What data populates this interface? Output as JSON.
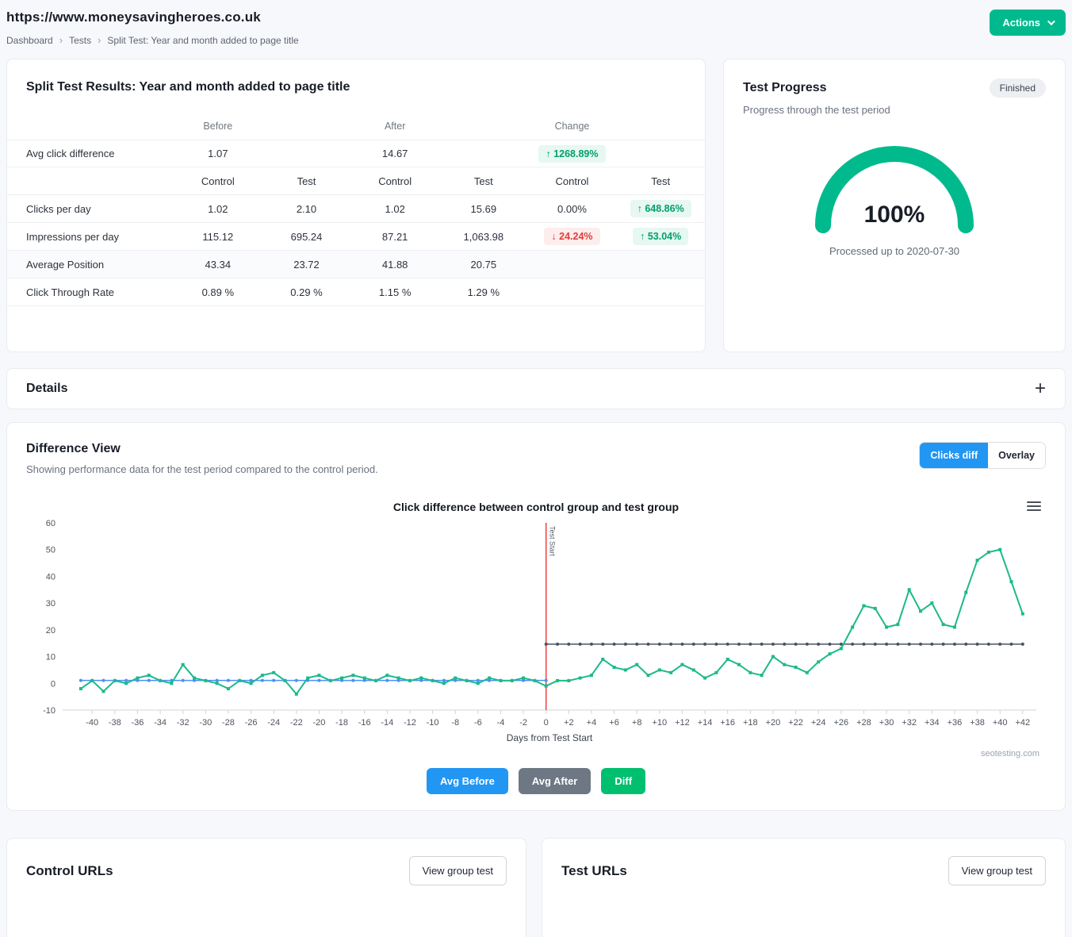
{
  "header": {
    "site_title": "https://www.moneysavingheroes.co.uk",
    "breadcrumb": [
      "Dashboard",
      "Tests",
      "Split Test: Year and month added to page title"
    ],
    "actions_label": "Actions"
  },
  "colors": {
    "brand_teal": "#00ba8d",
    "accent_blue": "#2196f3",
    "diff_green": "#1cb98b",
    "avg_after_gray": "#4a5560",
    "annotation_red": "#f03e3e",
    "up_badge_text": "#00a06a",
    "down_badge_text": "#e23c3c"
  },
  "results": {
    "title": "Split Test Results: Year and month added to page title",
    "periods": [
      "Before",
      "After",
      "Change"
    ],
    "avg_label": "Avg click difference",
    "avg_before": "1.07",
    "avg_after": "14.67",
    "avg_change": "↑ 1268.89%",
    "sub_headers": [
      "Control",
      "Test",
      "Control",
      "Test",
      "Control",
      "Test"
    ],
    "rows": [
      {
        "label": "Clicks per day",
        "c1": "1.02",
        "t1": "2.10",
        "c2": "1.02",
        "t2": "15.69",
        "c3": "0.00%",
        "t3": "↑ 648.86%"
      },
      {
        "label": "Impressions per day",
        "c1": "115.12",
        "t1": "695.24",
        "c2": "87.21",
        "t2": "1,063.98",
        "c3": "↓ 24.24%",
        "t3": "↑ 53.04%"
      },
      {
        "label": "Average Position",
        "c1": "43.34",
        "t1": "23.72",
        "c2": "41.88",
        "t2": "20.75",
        "c3": "",
        "t3": ""
      },
      {
        "label": "Click Through Rate",
        "c1": "0.89 %",
        "t1": "0.29 %",
        "c2": "1.15 %",
        "t2": "1.29 %",
        "c3": "",
        "t3": ""
      }
    ]
  },
  "progress": {
    "title": "Test Progress",
    "status": "Finished",
    "subtitle": "Progress through the test period",
    "percent": "100%",
    "caption": "Processed up to 2020-07-30"
  },
  "details": {
    "title": "Details"
  },
  "diff_view": {
    "title": "Difference View",
    "subtitle": "Showing performance data for the test period compared to the control period.",
    "toggles": [
      "Clicks diff",
      "Overlay"
    ],
    "legend": [
      "Avg Before",
      "Avg After",
      "Diff"
    ],
    "watermark": "seotesting.com"
  },
  "chart_data": {
    "type": "line",
    "title": "Click difference between control group and test group",
    "xlabel": "Days from Test Start",
    "ylim": [
      -10,
      60
    ],
    "yticks_step": 10,
    "xticks": {
      "from": -40,
      "to": 42,
      "step": 2
    },
    "annotation": {
      "x": 0,
      "label": "Test Start",
      "color": "#f03e3e"
    },
    "series": [
      {
        "name": "Avg Before",
        "color": "#4a90f4",
        "marker": "circle",
        "x": [
          -41,
          0
        ],
        "constant": 1.07,
        "width": 1.5
      },
      {
        "name": "Avg After",
        "color": "#4a5560",
        "marker": "circle",
        "x": [
          0,
          42
        ],
        "constant": 14.67,
        "width": 1.5
      },
      {
        "name": "Diff",
        "color": "#1cb98b",
        "marker": "square",
        "width": 2,
        "points": [
          [
            -41,
            -2
          ],
          [
            -40,
            1
          ],
          [
            -39,
            -3
          ],
          [
            -38,
            1
          ],
          [
            -37,
            0
          ],
          [
            -36,
            2
          ],
          [
            -35,
            3
          ],
          [
            -34,
            1
          ],
          [
            -33,
            0
          ],
          [
            -32,
            7
          ],
          [
            -31,
            2
          ],
          [
            -30,
            1
          ],
          [
            -29,
            0
          ],
          [
            -28,
            -2
          ],
          [
            -27,
            1
          ],
          [
            -26,
            0
          ],
          [
            -25,
            3
          ],
          [
            -24,
            4
          ],
          [
            -23,
            1
          ],
          [
            -22,
            -4
          ],
          [
            -21,
            2
          ],
          [
            -20,
            3
          ],
          [
            -19,
            1
          ],
          [
            -18,
            2
          ],
          [
            -17,
            3
          ],
          [
            -16,
            2
          ],
          [
            -15,
            1
          ],
          [
            -14,
            3
          ],
          [
            -13,
            2
          ],
          [
            -12,
            1
          ],
          [
            -11,
            2
          ],
          [
            -10,
            1
          ],
          [
            -9,
            0
          ],
          [
            -8,
            2
          ],
          [
            -7,
            1
          ],
          [
            -6,
            0
          ],
          [
            -5,
            2
          ],
          [
            -4,
            1
          ],
          [
            -3,
            1
          ],
          [
            -2,
            2
          ],
          [
            -1,
            1
          ],
          [
            0,
            -1
          ],
          [
            1,
            1
          ],
          [
            2,
            1
          ],
          [
            3,
            2
          ],
          [
            4,
            3
          ],
          [
            5,
            9
          ],
          [
            6,
            6
          ],
          [
            7,
            5
          ],
          [
            8,
            7
          ],
          [
            9,
            3
          ],
          [
            10,
            5
          ],
          [
            11,
            4
          ],
          [
            12,
            7
          ],
          [
            13,
            5
          ],
          [
            14,
            2
          ],
          [
            15,
            4
          ],
          [
            16,
            9
          ],
          [
            17,
            7
          ],
          [
            18,
            4
          ],
          [
            19,
            3
          ],
          [
            20,
            10
          ],
          [
            21,
            7
          ],
          [
            22,
            6
          ],
          [
            23,
            4
          ],
          [
            24,
            8
          ],
          [
            25,
            11
          ],
          [
            26,
            13
          ],
          [
            27,
            21
          ],
          [
            28,
            29
          ],
          [
            29,
            28
          ],
          [
            30,
            21
          ],
          [
            31,
            22
          ],
          [
            32,
            35
          ],
          [
            33,
            27
          ],
          [
            34,
            30
          ],
          [
            35,
            22
          ],
          [
            36,
            21
          ],
          [
            37,
            34
          ],
          [
            38,
            46
          ],
          [
            39,
            49
          ],
          [
            40,
            50
          ],
          [
            41,
            38
          ],
          [
            42,
            26
          ]
        ]
      }
    ]
  },
  "control_urls": {
    "title": "Control URLs",
    "button": "View group test"
  },
  "test_urls": {
    "title": "Test URLs",
    "button": "View group test"
  }
}
